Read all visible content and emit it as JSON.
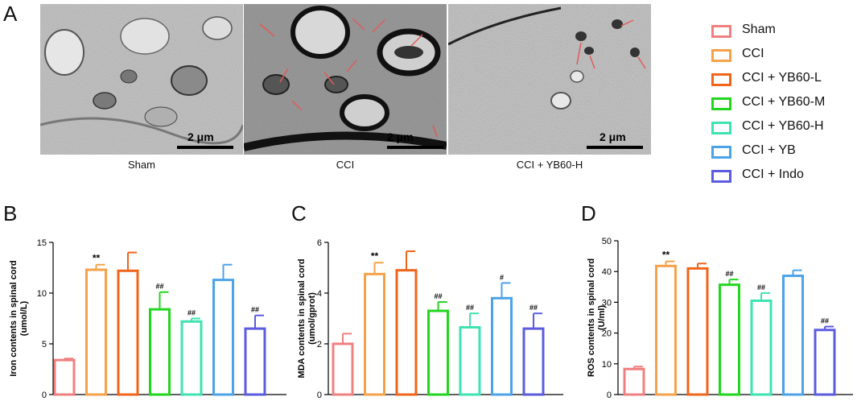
{
  "panels": {
    "a": "A",
    "b": "B",
    "c": "C",
    "d": "D"
  },
  "micrographs": [
    {
      "caption": "Sham",
      "scale_label": "2 μm"
    },
    {
      "caption": "CCI",
      "scale_label": "2 μm"
    },
    {
      "caption": "CCI + YB60-H",
      "scale_label": "2 μm"
    }
  ],
  "legend": [
    {
      "label": "Sham",
      "color": "#f08080"
    },
    {
      "label": "CCI",
      "color": "#f5a24a"
    },
    {
      "label": "CCI + YB60-L",
      "color": "#f0651a"
    },
    {
      "label": "CCI + YB60-M",
      "color": "#22d61e"
    },
    {
      "label": "CCI + YB60-H",
      "color": "#3ee3b0"
    },
    {
      "label": "CCI + YB",
      "color": "#4da3e8"
    },
    {
      "label": "CCI + Indo",
      "color": "#5c5ce0"
    }
  ],
  "chart_data": [
    {
      "type": "bar",
      "panel": "B",
      "title": "",
      "xlabel": "",
      "ylabel": "Iron contents in spinal cord (umol/L)",
      "ylabel_lines": [
        "Iron contents in spinal cord",
        "(umol/L)"
      ],
      "ylim": [
        0,
        15
      ],
      "yticks": [
        0,
        5,
        10,
        15
      ],
      "categories": [
        "Sham",
        "CCI",
        "CCI + YB60-L",
        "CCI + YB60-M",
        "CCI + YB60-H",
        "CCI + YB",
        "CCI + Indo"
      ],
      "values": [
        3.4,
        12.3,
        12.2,
        8.4,
        7.2,
        11.3,
        6.5
      ],
      "errors": [
        0.15,
        0.5,
        1.8,
        1.7,
        0.3,
        1.5,
        1.3
      ],
      "annotations": [
        "",
        "**",
        "",
        "##",
        "##",
        "",
        "##"
      ]
    },
    {
      "type": "bar",
      "panel": "C",
      "title": "",
      "xlabel": "",
      "ylabel": "MDA contents in spinal cord (umol/gprot)",
      "ylabel_lines": [
        "MDA contents in spinal cord",
        "(umol/gprot)"
      ],
      "ylim": [
        0,
        6
      ],
      "yticks": [
        0,
        2,
        4,
        6
      ],
      "categories": [
        "Sham",
        "CCI",
        "CCI + YB60-L",
        "CCI + YB60-M",
        "CCI + YB60-H",
        "CCI + YB",
        "CCI + Indo"
      ],
      "values": [
        2.0,
        4.75,
        4.9,
        3.3,
        2.65,
        3.8,
        2.6
      ],
      "errors": [
        0.4,
        0.45,
        0.75,
        0.35,
        0.55,
        0.6,
        0.6
      ],
      "annotations": [
        "",
        "**",
        "",
        "##",
        "##",
        "#",
        "##"
      ]
    },
    {
      "type": "bar",
      "panel": "D",
      "title": "",
      "xlabel": "",
      "ylabel": "ROS contents in spinal cord (U/ml)",
      "ylabel_lines": [
        "ROS contents in spinal cord",
        "(U/ml)"
      ],
      "ylim": [
        0,
        50
      ],
      "yticks": [
        0,
        10,
        20,
        30,
        40,
        50
      ],
      "categories": [
        "Sham",
        "CCI",
        "CCI + YB60-L",
        "CCI + YB60-M",
        "CCI + YB60-H",
        "CCI + YB",
        "CCI + Indo"
      ],
      "values": [
        8.3,
        41.8,
        41.0,
        35.7,
        30.5,
        38.6,
        21.0
      ],
      "errors": [
        0.8,
        1.5,
        1.6,
        1.7,
        2.5,
        1.8,
        1.1
      ],
      "annotations": [
        "",
        "**",
        "",
        "##",
        "##",
        "",
        "##"
      ]
    }
  ]
}
